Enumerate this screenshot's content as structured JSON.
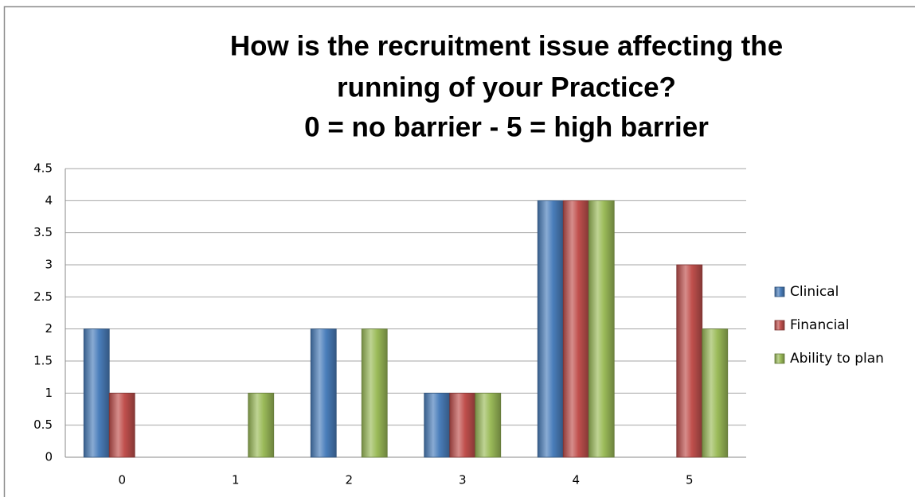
{
  "chart_data": {
    "type": "bar",
    "title": [
      "How is the recruitment issue affecting the",
      "running of your Practice?",
      "0 = no barrier - 5 = high barrier"
    ],
    "categories": [
      "0",
      "1",
      "2",
      "3",
      "4",
      "5"
    ],
    "series": [
      {
        "name": "Clinical",
        "color": "#4a7ebb",
        "values": [
          2,
          0,
          2,
          1,
          4,
          0
        ]
      },
      {
        "name": "Financial",
        "color": "#c0504d",
        "values": [
          1,
          0,
          0,
          1,
          4,
          3
        ]
      },
      {
        "name": "Ability to plan",
        "color": "#9bbb59",
        "values": [
          0,
          1,
          2,
          1,
          4,
          2
        ]
      }
    ],
    "ylim": [
      0,
      4.5
    ],
    "yticks": [
      0,
      0.5,
      1,
      1.5,
      2,
      2.5,
      3,
      3.5,
      4,
      4.5
    ],
    "grid": true,
    "legend": "right"
  }
}
